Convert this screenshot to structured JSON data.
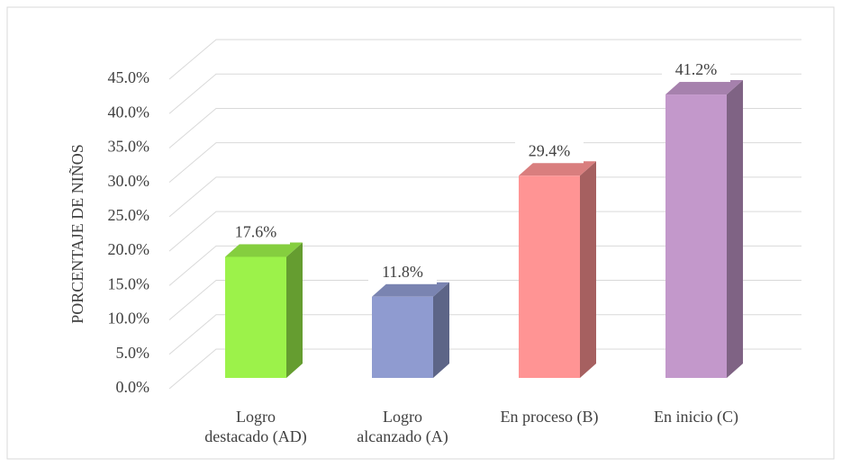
{
  "chart_data": {
    "type": "bar3d",
    "y_axis_label": "PORCENTAJE DE NIÑOS",
    "categories": [
      "Logro\ndestacado (AD)",
      "Logro\nalcanzado (A)",
      "En proceso (B)",
      "En inicio (C)"
    ],
    "values": [
      17.6,
      11.8,
      29.4,
      41.2
    ],
    "value_labels": [
      "17.6%",
      "11.8%",
      "29.4%",
      "41.2%"
    ],
    "colors": [
      "#9cf24a",
      "#8f9bd0",
      "#ff9494",
      "#c398cb"
    ],
    "ylim": [
      0,
      45
    ],
    "yticks": [
      {
        "value": 0,
        "label": "0.0%"
      },
      {
        "value": 5,
        "label": "5.0%"
      },
      {
        "value": 10,
        "label": "10.0%"
      },
      {
        "value": 15,
        "label": "15.0%"
      },
      {
        "value": 20,
        "label": "20.0%"
      },
      {
        "value": 25,
        "label": "25.0%"
      },
      {
        "value": 30,
        "label": "30.0%"
      },
      {
        "value": 35,
        "label": "35.0%"
      },
      {
        "value": 40,
        "label": "40.0%"
      },
      {
        "value": 45,
        "label": "45.0%"
      }
    ],
    "grid": true
  }
}
